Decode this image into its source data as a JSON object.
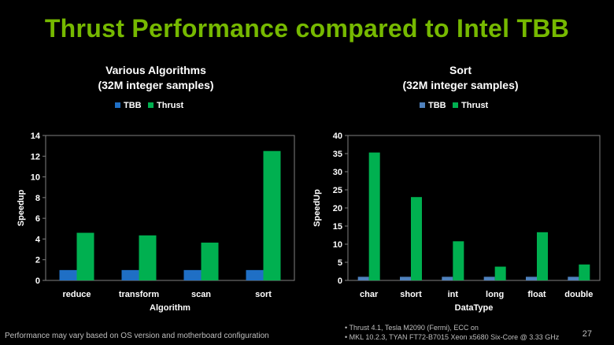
{
  "slide": {
    "title": "Thrust Performance compared to Intel TBB",
    "footer_disclaimer": "Performance may vary based on OS version and motherboard configuration",
    "footnotes": [
      "• Thrust 4.1, Tesla M2090 (Fermi), ECC on",
      "• MKL 10.2.3, TYAN FT72-B7015 Xeon x5680 Six-Core @ 3.33 GHz"
    ],
    "page_number": "27"
  },
  "colors": {
    "tbb": "#1f6fc5",
    "tbb_right": "#4f81bd",
    "thrust": "#00b050",
    "title": "#76b900"
  },
  "chart_data": [
    {
      "type": "bar",
      "title": [
        "Various Algorithms",
        "(32M integer samples)"
      ],
      "categories": [
        "reduce",
        "transform",
        "scan",
        "sort"
      ],
      "series": [
        {
          "name": "TBB",
          "values": [
            1,
            1,
            1,
            1
          ]
        },
        {
          "name": "Thrust",
          "values": [
            4.6,
            4.35,
            3.65,
            12.5
          ]
        }
      ],
      "xlabel": "Algorithm",
      "ylabel": "Speedup",
      "ylim": [
        0,
        14
      ],
      "yticks": [
        "0",
        "2",
        "4",
        "6",
        "8",
        "10",
        "12",
        "14"
      ],
      "legend": "top"
    },
    {
      "type": "bar",
      "title": [
        "Sort",
        "(32M integer samples)"
      ],
      "categories": [
        "char",
        "short",
        "int",
        "long",
        "float",
        "double"
      ],
      "series": [
        {
          "name": "TBB",
          "values": [
            1,
            1,
            1,
            1,
            1,
            1
          ]
        },
        {
          "name": "Thrust",
          "values": [
            35.3,
            23,
            10.8,
            3.8,
            13.3,
            4.4
          ]
        }
      ],
      "xlabel": "DataType",
      "ylabel": "SpeedUp",
      "ylim": [
        0,
        40
      ],
      "yticks": [
        "0",
        "5",
        "10",
        "15",
        "20",
        "25",
        "30",
        "35",
        "40"
      ],
      "legend": "top"
    }
  ]
}
